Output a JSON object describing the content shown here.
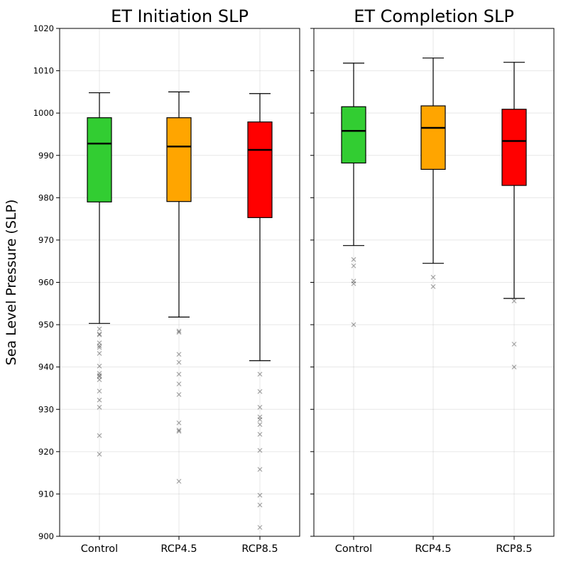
{
  "chart_data": {
    "type": "boxplot",
    "ylabel": "Sea Level Pressure (SLP)",
    "ylim": [
      900,
      1020
    ],
    "yticks": [
      900,
      910,
      920,
      930,
      940,
      950,
      960,
      970,
      980,
      990,
      1000,
      1010,
      1020
    ],
    "grid": true,
    "shared_y_axis": true,
    "marker": "x",
    "panels": [
      {
        "title": "ET Initiation SLP",
        "categories": [
          "Control",
          "RCP4.5",
          "RCP8.5"
        ],
        "boxes": [
          {
            "category": "Control",
            "color": "#32CD32",
            "whisker_low": 950.3,
            "q1": 979.0,
            "median": 992.8,
            "q3": 998.9,
            "whisker_high": 1004.8,
            "fliers": [
              949.0,
              947.8,
              947.6,
              945.7,
              945.0,
              944.6,
              943.2,
              940.2,
              938.5,
              938.0,
              937.7,
              937.0,
              934.3,
              932.2,
              930.5,
              923.8,
              919.4
            ]
          },
          {
            "category": "RCP4.5",
            "color": "#FFA500",
            "whisker_low": 951.8,
            "q1": 979.1,
            "median": 992.1,
            "q3": 998.9,
            "whisker_high": 1005.0,
            "fliers": [
              948.5,
              948.2,
              943.0,
              941.1,
              938.3,
              936.0,
              933.5,
              926.8,
              925.1,
              924.8,
              913.0
            ]
          },
          {
            "category": "RCP8.5",
            "color": "#FF0000",
            "whisker_low": 941.5,
            "q1": 975.3,
            "median": 991.3,
            "q3": 997.9,
            "whisker_high": 1004.6,
            "fliers": [
              938.3,
              934.2,
              930.5,
              928.2,
              927.6,
              926.4,
              924.1,
              920.3,
              915.8,
              909.7,
              907.4,
              902.1
            ]
          }
        ]
      },
      {
        "title": "ET Completion SLP",
        "categories": [
          "Control",
          "RCP4.5",
          "RCP8.5"
        ],
        "boxes": [
          {
            "category": "Control",
            "color": "#32CD32",
            "whisker_low": 968.7,
            "q1": 988.2,
            "median": 995.8,
            "q3": 1001.5,
            "whisker_high": 1011.8,
            "fliers": [
              965.4,
              963.9,
              960.3,
              959.7,
              950.0
            ]
          },
          {
            "category": "RCP4.5",
            "color": "#FFA500",
            "whisker_low": 964.5,
            "q1": 986.7,
            "median": 996.5,
            "q3": 1001.7,
            "whisker_high": 1013.0,
            "fliers": [
              961.2,
              959.0
            ]
          },
          {
            "category": "RCP8.5",
            "color": "#FF0000",
            "whisker_low": 956.2,
            "q1": 982.9,
            "median": 993.4,
            "q3": 1000.9,
            "whisker_high": 1012.0,
            "fliers": [
              955.6,
              945.4,
              940.0
            ]
          }
        ]
      }
    ]
  }
}
